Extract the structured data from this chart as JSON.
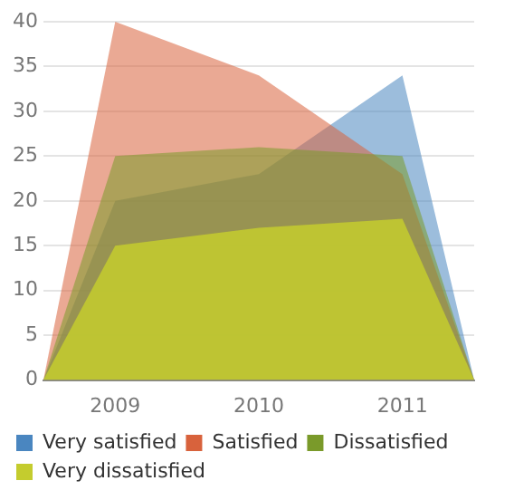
{
  "chart_data": {
    "type": "area",
    "x": [
      2008.5,
      2009,
      2010,
      2011,
      2011.5
    ],
    "xlim": [
      2008.5,
      2011.5
    ],
    "xticks": [
      2009,
      2010,
      2011
    ],
    "ylim": [
      0,
      40
    ],
    "yticks": [
      0,
      5,
      10,
      15,
      20,
      25,
      30,
      35,
      40
    ],
    "grid": "y",
    "legend": "bottom",
    "series": [
      {
        "name": "Very satisfied",
        "color": "#4a86c0",
        "values": [
          0,
          20,
          23,
          34,
          0
        ]
      },
      {
        "name": "Satisfied",
        "color": "#d8623c",
        "values": [
          0,
          40,
          34,
          23,
          0
        ]
      },
      {
        "name": "Dissatisfied",
        "color": "#7a9a2a",
        "values": [
          0,
          25,
          26,
          25,
          0
        ]
      },
      {
        "name": "Very dissatisfied",
        "color": "#c4cc2e",
        "values": [
          0,
          15,
          17,
          18,
          0
        ]
      }
    ]
  }
}
